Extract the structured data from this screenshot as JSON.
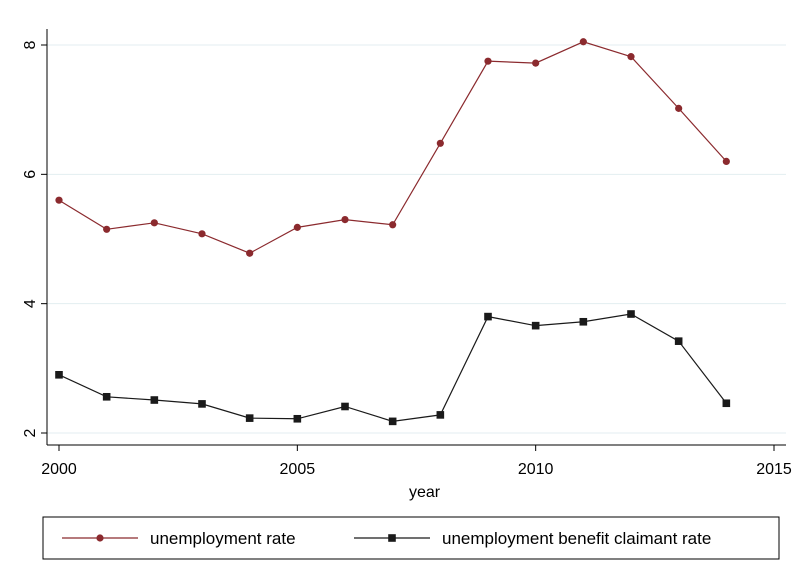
{
  "chart_data": {
    "type": "line",
    "xlabel": "year",
    "ylabel": "",
    "xlim": [
      2000,
      2015
    ],
    "ylim": [
      2,
      8.4
    ],
    "xticks": [
      2000,
      2005,
      2010,
      2015
    ],
    "yticks": [
      2,
      4,
      6,
      8
    ],
    "grid": "horizontal",
    "legend": "bottom",
    "x": [
      2000,
      2001,
      2002,
      2003,
      2004,
      2005,
      2006,
      2007,
      2008,
      2009,
      2010,
      2011,
      2012,
      2013,
      2014
    ],
    "series": [
      {
        "name": "unemployment rate",
        "color": "#8b2a2e",
        "marker": "circle",
        "values": [
          5.6,
          5.15,
          5.25,
          5.08,
          4.78,
          5.18,
          5.3,
          5.22,
          6.48,
          7.75,
          7.72,
          8.05,
          7.82,
          7.02,
          6.2
        ]
      },
      {
        "name": "unemployment benefit claimant rate",
        "color": "#1a1a1a",
        "marker": "square",
        "values": [
          2.9,
          2.56,
          2.51,
          2.45,
          2.23,
          2.22,
          2.41,
          2.18,
          2.28,
          3.8,
          3.66,
          3.72,
          3.84,
          3.42,
          2.46
        ]
      }
    ]
  }
}
